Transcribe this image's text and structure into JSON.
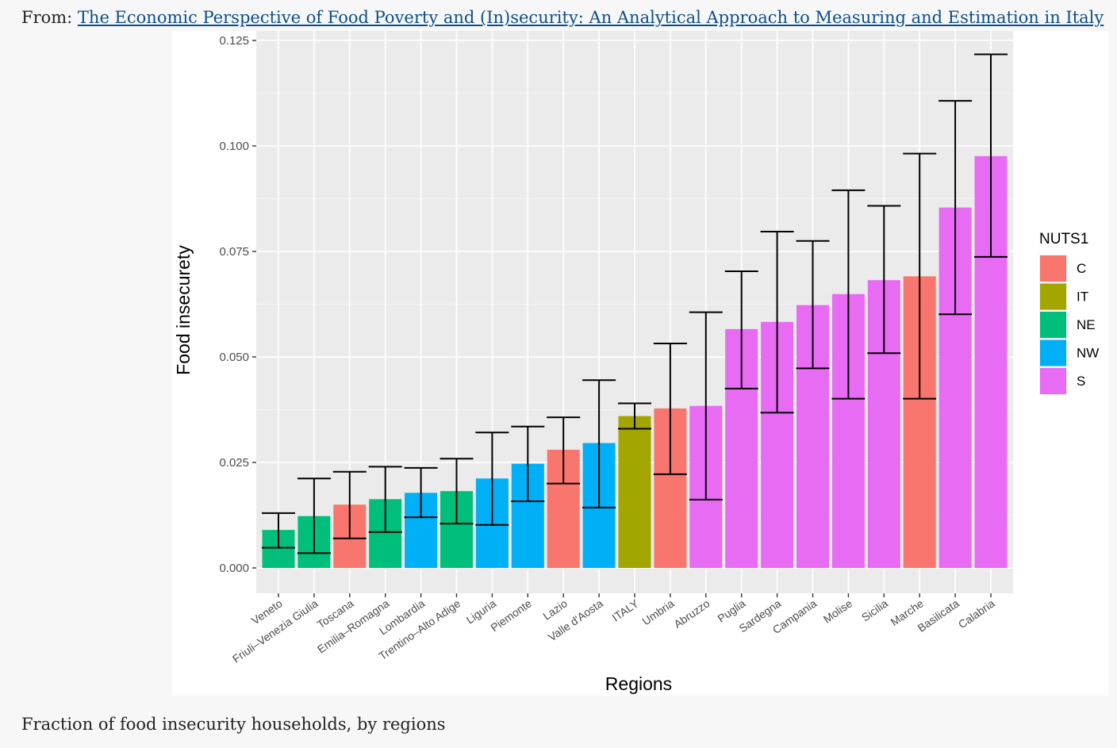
{
  "header": {
    "prefix": "From: ",
    "link_text": "The Economic Perspective of Food Poverty and (In)security: An Analytical Approach to Measuring and Estimation in Italy"
  },
  "caption": "Fraction of food insecurity households, by regions",
  "chart_data": {
    "type": "bar",
    "xlabel": "Regions",
    "ylabel": "Food insecurety",
    "ylim": [
      0,
      0.125
    ],
    "yticks": [
      "0.000",
      "0.025",
      "0.050",
      "0.075",
      "0.100",
      "0.125"
    ],
    "ytick_values": [
      0,
      0.025,
      0.05,
      0.075,
      0.1,
      0.125
    ],
    "grid": true,
    "legend": {
      "title": "NUTS1",
      "placement": "right",
      "items": [
        {
          "label": "C",
          "color": "#f8766d"
        },
        {
          "label": "IT",
          "color": "#a3a500"
        },
        {
          "label": "NE",
          "color": "#00bf7d"
        },
        {
          "label": "NW",
          "color": "#00b0f6"
        },
        {
          "label": "S",
          "color": "#e76bf3"
        }
      ]
    },
    "categories": [
      "Veneto",
      "Friuli–Venezia Giulia",
      "Toscana",
      "Emilia–Romagna",
      "Lombardia",
      "Trentino–Alto Adige",
      "Liguria",
      "Piemonte",
      "Lazio",
      "Valle d'Aosta",
      "ITALY",
      "Umbria",
      "Abruzzo",
      "Puglia",
      "Sardegna",
      "Campania",
      "Molise",
      "Sicilia",
      "Marche",
      "Basilicata",
      "Calabria"
    ],
    "groups": [
      "NE",
      "NE",
      "C",
      "NE",
      "NW",
      "NE",
      "NW",
      "NW",
      "C",
      "NW",
      "IT",
      "C",
      "S",
      "S",
      "S",
      "S",
      "S",
      "S",
      "C",
      "S",
      "S"
    ],
    "values": [
      0.009,
      0.0123,
      0.015,
      0.0163,
      0.0178,
      0.0182,
      0.0212,
      0.0247,
      0.028,
      0.0296,
      0.036,
      0.0378,
      0.0384,
      0.0566,
      0.0583,
      0.0623,
      0.0649,
      0.0682,
      0.0691,
      0.0854,
      0.0976
    ],
    "lower": [
      0.0048,
      0.0035,
      0.007,
      0.0085,
      0.012,
      0.0105,
      0.0102,
      0.0158,
      0.02,
      0.0143,
      0.033,
      0.0222,
      0.0162,
      0.0425,
      0.0368,
      0.0473,
      0.0401,
      0.0509,
      0.0401,
      0.0601,
      0.0737
    ],
    "upper": [
      0.013,
      0.0212,
      0.0228,
      0.024,
      0.0237,
      0.0259,
      0.0321,
      0.0335,
      0.0357,
      0.0445,
      0.039,
      0.0532,
      0.0606,
      0.0703,
      0.0797,
      0.0775,
      0.0895,
      0.0858,
      0.0982,
      0.1107,
      0.1217
    ]
  }
}
